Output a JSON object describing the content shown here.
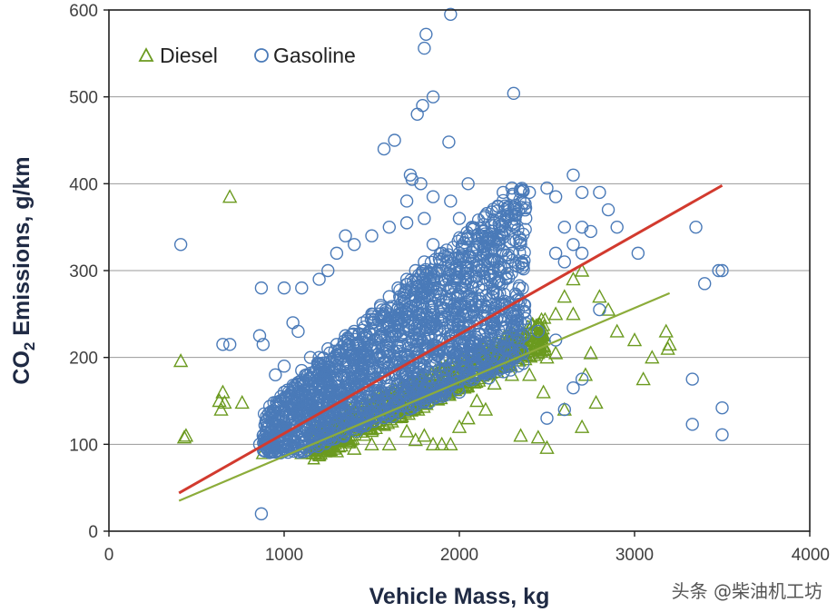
{
  "chart_data": {
    "type": "scatter",
    "title": "",
    "xlabel": "Vehicle Mass, kg",
    "ylabel_main": "CO",
    "ylabel_sub": "2",
    "ylabel_rest": " Emissions, g/km",
    "xlim": [
      0,
      4000
    ],
    "ylim": [
      0,
      600
    ],
    "x_ticks": [
      0,
      1000,
      2000,
      3000,
      4000
    ],
    "y_ticks": [
      0,
      100,
      200,
      300,
      400,
      500,
      600
    ],
    "x_tick_labels": [
      "0",
      "1000",
      "2000",
      "3000",
      "4000"
    ],
    "y_tick_labels": [
      "0",
      "100",
      "200",
      "300",
      "400",
      "500",
      "600"
    ],
    "grid": "horizontal",
    "legend_position": "top-left",
    "series": [
      {
        "name": "Diesel",
        "marker": "triangle-open",
        "color": "#6b9a1f",
        "points": [
          [
            690,
            385
          ],
          [
            410,
            196
          ],
          [
            430,
            108
          ],
          [
            440,
            110
          ],
          [
            630,
            150
          ],
          [
            640,
            140
          ],
          [
            650,
            160
          ],
          [
            660,
            148
          ],
          [
            760,
            148
          ],
          [
            880,
            90
          ],
          [
            900,
            100
          ],
          [
            2350,
            110
          ],
          [
            2450,
            108
          ],
          [
            2500,
            96
          ],
          [
            2480,
            160
          ],
          [
            2600,
            140
          ],
          [
            2650,
            250
          ],
          [
            2700,
            120
          ],
          [
            2720,
            180
          ],
          [
            2750,
            205
          ],
          [
            2780,
            148
          ],
          [
            2800,
            270
          ],
          [
            2850,
            255
          ],
          [
            2900,
            230
          ],
          [
            3000,
            220
          ],
          [
            3050,
            175
          ],
          [
            3100,
            200
          ],
          [
            3180,
            230
          ],
          [
            3200,
            215
          ],
          [
            3190,
            210
          ],
          [
            2650,
            290
          ],
          [
            2700,
            300
          ],
          [
            2600,
            270
          ],
          [
            2550,
            250
          ],
          [
            2400,
            180
          ],
          [
            2300,
            180
          ],
          [
            2200,
            170
          ],
          [
            2150,
            140
          ],
          [
            2100,
            150
          ],
          [
            2050,
            130
          ],
          [
            1900,
            100
          ],
          [
            1850,
            100
          ],
          [
            1950,
            100
          ],
          [
            1800,
            110
          ],
          [
            1750,
            105
          ],
          [
            1600,
            100
          ],
          [
            1500,
            100
          ],
          [
            1400,
            95
          ],
          [
            1300,
            92
          ],
          [
            1200,
            88
          ],
          [
            1100,
            90
          ],
          [
            1700,
            115
          ],
          [
            2000,
            120
          ],
          [
            2200,
            200
          ],
          [
            2300,
            210
          ],
          [
            2350,
            215
          ],
          [
            2400,
            220
          ],
          [
            2450,
            210
          ],
          [
            2500,
            200
          ],
          [
            2550,
            205
          ]
        ]
      },
      {
        "name": "Gasoline",
        "marker": "circle-open",
        "color": "#4a7ab8",
        "points": [
          [
            1950,
            595
          ],
          [
            1810,
            572
          ],
          [
            1800,
            556
          ],
          [
            2310,
            504
          ],
          [
            1760,
            480
          ],
          [
            1790,
            490
          ],
          [
            1850,
            500
          ],
          [
            1630,
            450
          ],
          [
            1570,
            440
          ],
          [
            1940,
            448
          ],
          [
            1720,
            410
          ],
          [
            1730,
            405
          ],
          [
            1780,
            400
          ],
          [
            1700,
            380
          ],
          [
            1850,
            385
          ],
          [
            1950,
            380
          ],
          [
            2050,
            400
          ],
          [
            2250,
            390
          ],
          [
            2300,
            395
          ],
          [
            2400,
            390
          ],
          [
            2500,
            395
          ],
          [
            2550,
            385
          ],
          [
            2650,
            410
          ],
          [
            2700,
            390
          ],
          [
            2800,
            390
          ],
          [
            2850,
            370
          ],
          [
            2600,
            350
          ],
          [
            2700,
            350
          ],
          [
            2750,
            345
          ],
          [
            2900,
            350
          ],
          [
            2650,
            330
          ],
          [
            2700,
            320
          ],
          [
            2550,
            320
          ],
          [
            2600,
            310
          ],
          [
            2350,
            330
          ],
          [
            2300,
            320
          ],
          [
            2200,
            335
          ],
          [
            2100,
            340
          ],
          [
            2050,
            340
          ],
          [
            2000,
            360
          ],
          [
            1800,
            360
          ],
          [
            1700,
            355
          ],
          [
            1600,
            350
          ],
          [
            1500,
            340
          ],
          [
            1400,
            330
          ],
          [
            1350,
            340
          ],
          [
            1300,
            320
          ],
          [
            1250,
            300
          ],
          [
            1200,
            290
          ],
          [
            1100,
            280
          ],
          [
            1000,
            280
          ],
          [
            870,
            280
          ],
          [
            860,
            225
          ],
          [
            880,
            215
          ],
          [
            650,
            215
          ],
          [
            690,
            215
          ],
          [
            410,
            330
          ],
          [
            1050,
            240
          ],
          [
            1080,
            230
          ],
          [
            3020,
            320
          ],
          [
            3350,
            350
          ],
          [
            3400,
            285
          ],
          [
            3500,
            300
          ],
          [
            3480,
            300
          ],
          [
            3330,
            175
          ],
          [
            3330,
            123
          ],
          [
            3500,
            142
          ],
          [
            3500,
            111
          ],
          [
            870,
            20
          ],
          [
            2500,
            130
          ],
          [
            2600,
            140
          ],
          [
            2650,
            165
          ],
          [
            2700,
            175
          ],
          [
            2800,
            255
          ],
          [
            2300,
            250
          ],
          [
            2350,
            240
          ],
          [
            2450,
            230
          ],
          [
            2550,
            220
          ],
          [
            2000,
            320
          ],
          [
            1900,
            300
          ],
          [
            1950,
            280
          ],
          [
            1850,
            290
          ],
          [
            1800,
            270
          ],
          [
            1750,
            260
          ],
          [
            1700,
            250
          ],
          [
            1650,
            240
          ],
          [
            1600,
            230
          ],
          [
            1550,
            220
          ],
          [
            1500,
            210
          ],
          [
            1450,
            200
          ],
          [
            1400,
            190
          ],
          [
            1350,
            180
          ],
          [
            1300,
            175
          ],
          [
            1250,
            170
          ],
          [
            1200,
            165
          ],
          [
            1150,
            160
          ],
          [
            1100,
            150
          ],
          [
            1050,
            145
          ],
          [
            1000,
            140
          ],
          [
            950,
            130
          ],
          [
            900,
            120
          ],
          [
            880,
            110
          ],
          [
            860,
            100
          ],
          [
            900,
            105
          ],
          [
            950,
            115
          ],
          [
            1000,
            125
          ],
          [
            1050,
            130
          ],
          [
            1100,
            135
          ],
          [
            1150,
            140
          ],
          [
            1200,
            150
          ],
          [
            1250,
            155
          ],
          [
            1300,
            160
          ],
          [
            1350,
            165
          ],
          [
            1400,
            170
          ],
          [
            1450,
            175
          ],
          [
            1500,
            180
          ],
          [
            1550,
            185
          ],
          [
            1600,
            190
          ],
          [
            1650,
            195
          ],
          [
            1700,
            200
          ],
          [
            1750,
            205
          ],
          [
            1800,
            210
          ],
          [
            1850,
            215
          ],
          [
            1900,
            220
          ],
          [
            1950,
            225
          ],
          [
            2000,
            230
          ],
          [
            2050,
            235
          ],
          [
            2100,
            240
          ],
          [
            2150,
            245
          ],
          [
            2200,
            250
          ],
          [
            1000,
            160
          ],
          [
            1050,
            165
          ],
          [
            1100,
            170
          ],
          [
            1150,
            175
          ],
          [
            1200,
            180
          ],
          [
            1250,
            185
          ],
          [
            1300,
            190
          ],
          [
            1350,
            195
          ],
          [
            1400,
            200
          ],
          [
            1450,
            205
          ],
          [
            1500,
            215
          ],
          [
            1550,
            225
          ],
          [
            1600,
            235
          ],
          [
            1650,
            245
          ],
          [
            1700,
            255
          ],
          [
            1750,
            265
          ],
          [
            1800,
            275
          ],
          [
            1850,
            280
          ],
          [
            1900,
            290
          ],
          [
            1950,
            300
          ],
          [
            1000,
            110
          ],
          [
            1100,
            115
          ],
          [
            1200,
            120
          ],
          [
            1300,
            125
          ],
          [
            1400,
            130
          ],
          [
            1500,
            135
          ],
          [
            1600,
            140
          ],
          [
            1700,
            145
          ],
          [
            1800,
            150
          ],
          [
            1900,
            155
          ],
          [
            2000,
            160
          ],
          [
            1100,
            185
          ],
          [
            1200,
            200
          ],
          [
            1300,
            215
          ],
          [
            1400,
            230
          ],
          [
            1500,
            250
          ],
          [
            1600,
            270
          ],
          [
            1700,
            290
          ],
          [
            1800,
            310
          ],
          [
            1900,
            320
          ],
          [
            950,
            180
          ],
          [
            1000,
            190
          ],
          [
            1150,
            200
          ],
          [
            1250,
            210
          ],
          [
            1350,
            225
          ],
          [
            1450,
            240
          ],
          [
            1550,
            260
          ],
          [
            1650,
            280
          ],
          [
            1750,
            300
          ],
          [
            1850,
            330
          ]
        ]
      }
    ],
    "trendlines": [
      {
        "name": "Gasoline fit",
        "color": "#d23a2e",
        "x": [
          400,
          3500
        ],
        "y": [
          44,
          398
        ]
      },
      {
        "name": "Diesel fit",
        "color": "#8cac3a",
        "x": [
          400,
          3200
        ],
        "y": [
          35,
          274
        ]
      }
    ]
  },
  "watermark": "头条 @柴油机工坊"
}
